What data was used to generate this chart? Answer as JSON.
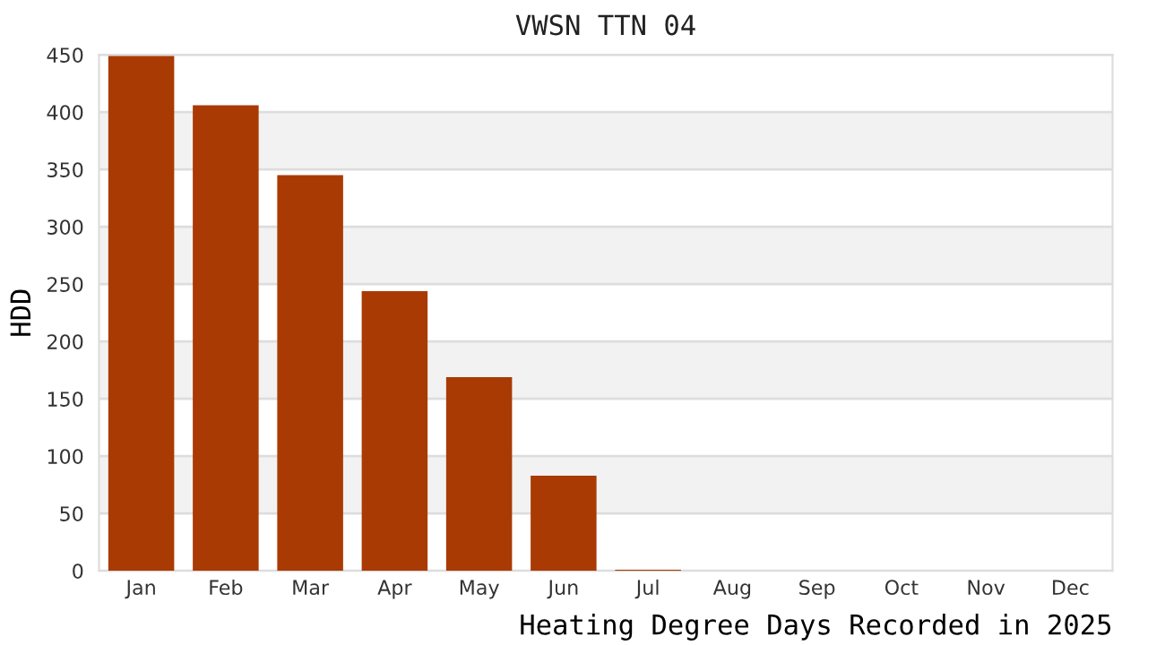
{
  "chart_data": {
    "type": "bar",
    "title": "VWSN TTN 04",
    "xlabel": "Heating Degree Days Recorded in 2025",
    "ylabel": "HDD",
    "categories": [
      "Jan",
      "Feb",
      "Mar",
      "Apr",
      "May",
      "Jun",
      "Jul",
      "Aug",
      "Sep",
      "Oct",
      "Nov",
      "Dec"
    ],
    "values": [
      449,
      406,
      345,
      244,
      169,
      83,
      1,
      0,
      0,
      0,
      0,
      0
    ],
    "color": "#aa3a03",
    "ylim": [
      0,
      450
    ],
    "yticks": [
      0,
      50,
      100,
      150,
      200,
      250,
      300,
      350,
      400,
      450
    ],
    "grid": "y",
    "legend": false
  }
}
